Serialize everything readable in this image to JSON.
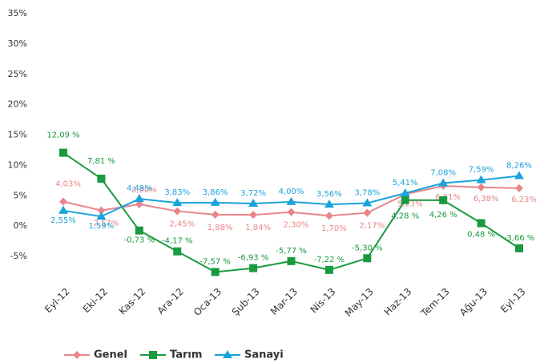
{
  "chart_data": {
    "type": "line",
    "categories": [
      "Eyl-12",
      "Eki-12",
      "Kas-12",
      "Ara-12",
      "Oca-13",
      "Şub-13",
      "Mar-13",
      "Nis-13",
      "May-13",
      "Haz-13",
      "Tem-13",
      "Ağu-13",
      "Eyl-13"
    ],
    "series": [
      {
        "name": "Genel",
        "color": "#e8868a",
        "marker": "diamond",
        "values": [
          4.03,
          2.57,
          3.6,
          2.45,
          1.88,
          1.84,
          2.3,
          1.7,
          2.17,
          5.23,
          6.61,
          6.38,
          6.23
        ],
        "value_labels": [
          "4,03%",
          "2,57%",
          "3,60%",
          "2,45%",
          "1,88%",
          "1,84%",
          "2,30%",
          "1,70%",
          "2,17%",
          "5,23%",
          "6,61%",
          "6,38%",
          "6,23%"
        ]
      },
      {
        "name": "Tarım",
        "color": "#1a9a3f",
        "marker": "square",
        "values": [
          12.09,
          7.81,
          -0.73,
          -4.17,
          -7.57,
          -6.93,
          -5.77,
          -7.22,
          -5.3,
          4.28,
          4.26,
          0.48,
          -3.66
        ],
        "value_labels": [
          "12,09 %",
          "7,81 %",
          "-0,73 %",
          "-4,17 %",
          "-7,57 %",
          "-6,93 %",
          "-5,77 %",
          "-7,22 %",
          "-5,30 %",
          "4,28 %",
          "4,26 %",
          "0,48 %",
          "-3,66 %"
        ]
      },
      {
        "name": "Sanayi",
        "color": "#1ba3dc",
        "marker": "triangle",
        "values": [
          2.55,
          1.59,
          4.49,
          3.83,
          3.86,
          3.72,
          4.0,
          3.56,
          3.78,
          5.41,
          7.08,
          7.59,
          8.26
        ],
        "value_labels": [
          "2,55%",
          "1,59%",
          "4,49%",
          "3,83%",
          "3,86%",
          "3,72%",
          "4,00%",
          "3,56%",
          "3,78%",
          "5,41%",
          "7,08%",
          "7,59%",
          "8,26%"
        ]
      }
    ],
    "ylim": [
      -8,
      35
    ],
    "yticks": [
      {
        "value": -5,
        "label": "-5%"
      },
      {
        "value": 0,
        "label": "0%"
      },
      {
        "value": 5,
        "label": "5%"
      },
      {
        "value": 10,
        "label": "10%"
      },
      {
        "value": 15,
        "label": "15%"
      },
      {
        "value": 20,
        "label": "20%"
      },
      {
        "value": 25,
        "label": "25%"
      },
      {
        "value": 30,
        "label": "30%"
      },
      {
        "value": 35,
        "label": "35%"
      }
    ],
    "grid": false,
    "legend": "bottom"
  }
}
